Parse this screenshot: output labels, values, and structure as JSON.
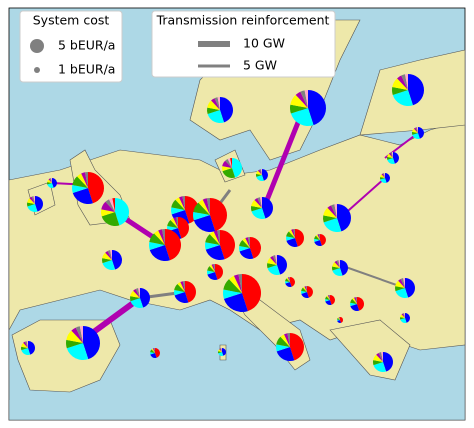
{
  "legend_cost": {
    "title": "System cost",
    "entries": [
      "5 bEUR/a",
      "1 bEUR/a"
    ]
  },
  "legend_transmission": {
    "title": "Transmission reinforcement",
    "entries": [
      "10 GW",
      "5 GW"
    ]
  }
}
